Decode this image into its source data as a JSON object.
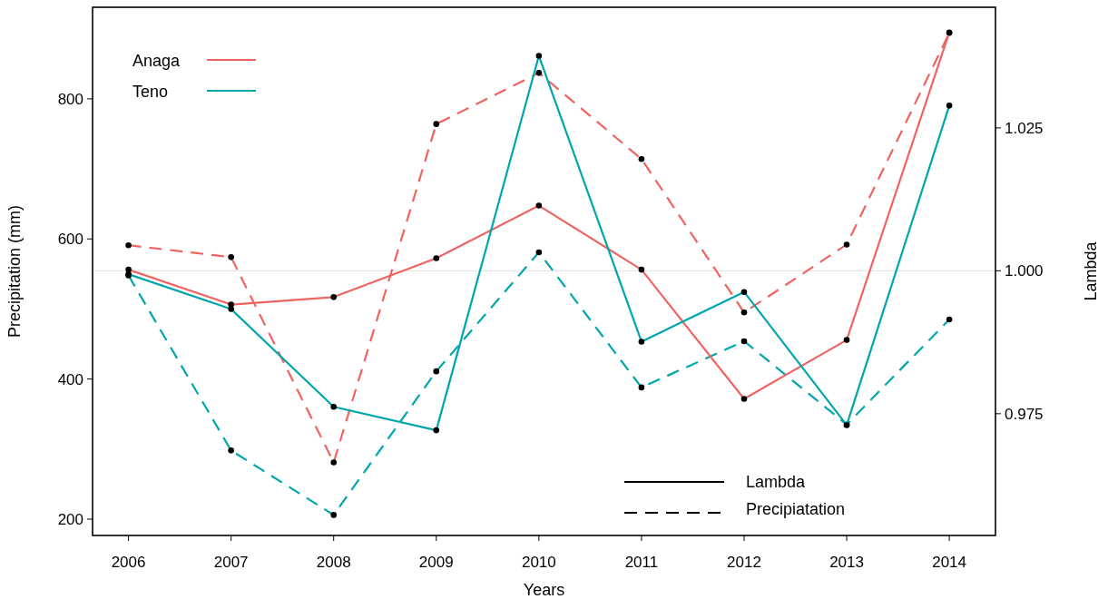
{
  "chart_data": {
    "type": "line",
    "xlabel": "Years",
    "ylabel": "Precipitation (mm)",
    "y2label": "Lambda",
    "x": [
      2006,
      2007,
      2008,
      2009,
      2010,
      2011,
      2012,
      2013,
      2014
    ],
    "xlim": [
      2005.65,
      2014.45
    ],
    "xticks": [
      2006,
      2007,
      2008,
      2009,
      2010,
      2011,
      2012,
      2013,
      2014
    ],
    "ylim": [
      176.7,
      930.7
    ],
    "yticks": [
      200,
      400,
      600,
      800
    ],
    "y2lim": [
      0.9537,
      1.0461
    ],
    "y2ticks": [
      {
        "value": 0.975,
        "label": "0.975"
      },
      {
        "value": 1.0,
        "label": "1.000"
      },
      {
        "value": 1.025,
        "label": "1.025"
      }
    ],
    "marker": "circle",
    "legend": "top left",
    "grid": false,
    "ref_lines": [
      {
        "axis": "y2",
        "value": 1.0,
        "color": "#e6e6e6"
      }
    ],
    "annotations": [
      "Lambda",
      "Precipiatation"
    ],
    "series": [
      {
        "color": "#ef6461",
        "line_style": "dashed",
        "values": [
          591,
          574,
          281,
          764,
          837,
          714,
          495,
          592,
          894
        ]
      },
      {
        "color": "#00a6ac",
        "line_style": "dashed",
        "values": [
          548,
          298,
          206,
          411,
          581,
          388,
          454,
          335,
          485
        ]
      },
      {
        "name": "Anaga",
        "color": "#ef6461",
        "line_style": "solid",
        "axis": "y2",
        "values": [
          1.0002,
          0.9941,
          0.9954,
          1.0022,
          1.0114,
          1.0002,
          0.9776,
          0.9879,
          1.0417
        ]
      },
      {
        "name": "Teno",
        "color": "#00a6ac",
        "line_style": "solid",
        "axis": "y2",
        "values": [
          0.9994,
          0.9933,
          0.9762,
          0.9721,
          1.0376,
          0.9876,
          0.9963,
          0.973,
          1.0289
        ]
      }
    ]
  }
}
